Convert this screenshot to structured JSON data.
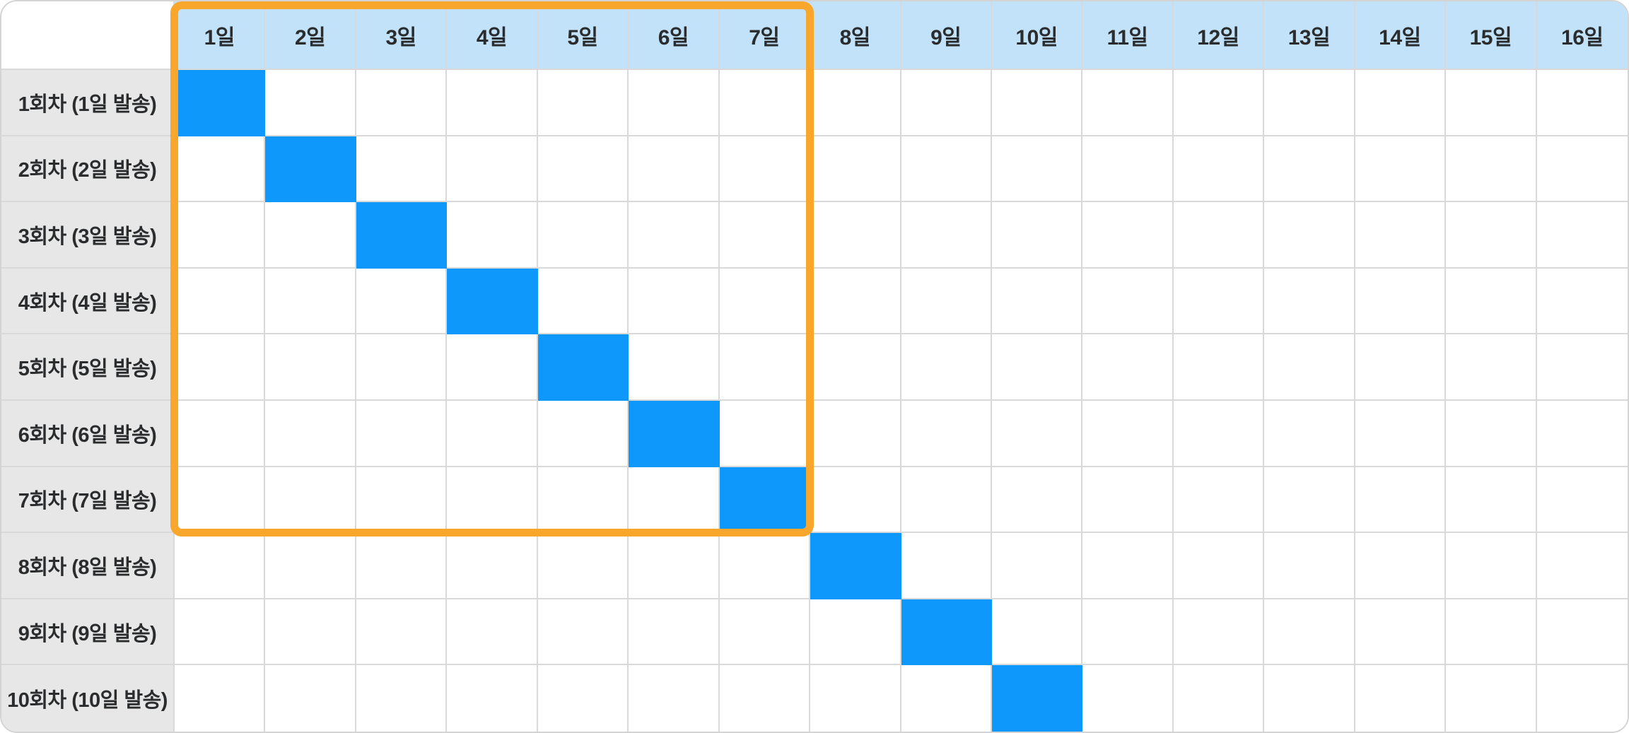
{
  "colors": {
    "header_bg": "#c2e2fa",
    "row_label_bg": "#e7e7e7",
    "filled_cell_blue": "#0e98fb",
    "highlight_orange": "#f8a72c",
    "grid_line": "#d9d9d9",
    "outer_border": "#d4d4d4",
    "text": "#2a2c2e",
    "background": "#ffffff"
  },
  "table": {
    "corner_label": "",
    "columns": [
      "1일",
      "2일",
      "3일",
      "4일",
      "5일",
      "6일",
      "7일",
      "8일",
      "9일",
      "10일",
      "11일",
      "12일",
      "13일",
      "14일",
      "15일",
      "16일"
    ],
    "rows": [
      {
        "label": "1회차 (1일 발송)",
        "filled_day": 1
      },
      {
        "label": "2회차 (2일 발송)",
        "filled_day": 2
      },
      {
        "label": "3회차 (3일 발송)",
        "filled_day": 3
      },
      {
        "label": "4회차 (4일 발송)",
        "filled_day": 4
      },
      {
        "label": "5회차 (5일 발송)",
        "filled_day": 5
      },
      {
        "label": "6회차 (6일 발송)",
        "filled_day": 6
      },
      {
        "label": "7회차 (7일 발송)",
        "filled_day": 7
      },
      {
        "label": "8회차 (8일 발송)",
        "filled_day": 8
      },
      {
        "label": "9회차 (9일 발송)",
        "filled_day": 9
      },
      {
        "label": "10회차 (10일 발송)",
        "filled_day": 10
      }
    ]
  },
  "highlight": {
    "day_start": 1,
    "day_end": 7,
    "row_start": 1,
    "row_end": 7,
    "color": "#f8a72c"
  },
  "chart_data": {
    "type": "table",
    "columns": [
      "1일",
      "2일",
      "3일",
      "4일",
      "5일",
      "6일",
      "7일",
      "8일",
      "9일",
      "10일",
      "11일",
      "12일",
      "13일",
      "14일",
      "15일",
      "16일"
    ],
    "rows": [
      "1회차 (1일 발송)",
      "2회차 (2일 발송)",
      "3회차 (3일 발송)",
      "4회차 (4일 발송)",
      "5회차 (5일 발송)",
      "6회차 (6일 발송)",
      "7회차 (7일 발송)",
      "8회차 (8일 발송)",
      "9회차 (9일 발송)",
      "10회차 (10일 발송)"
    ],
    "filled_cells": [
      {
        "row": "1회차 (1일 발송)",
        "column": "1일"
      },
      {
        "row": "2회차 (2일 발송)",
        "column": "2일"
      },
      {
        "row": "3회차 (3일 발송)",
        "column": "3일"
      },
      {
        "row": "4회차 (4일 발송)",
        "column": "4일"
      },
      {
        "row": "5회차 (5일 발송)",
        "column": "5일"
      },
      {
        "row": "6회차 (6일 발송)",
        "column": "6일"
      },
      {
        "row": "7회차 (7일 발송)",
        "column": "7일"
      },
      {
        "row": "8회차 (8일 발송)",
        "column": "8일"
      },
      {
        "row": "9회차 (9일 발송)",
        "column": "9일"
      },
      {
        "row": "10회차 (10일 발송)",
        "column": "10일"
      }
    ],
    "annotations": [
      {
        "type": "highlight-box",
        "columns": [
          "1일",
          "7일"
        ],
        "rows": [
          "1회차 (1일 발송)",
          "7회차 (7일 발송)"
        ],
        "color": "#f8a72c"
      }
    ],
    "fill_color": "#0e98fb",
    "grid": true,
    "legend": "none"
  }
}
